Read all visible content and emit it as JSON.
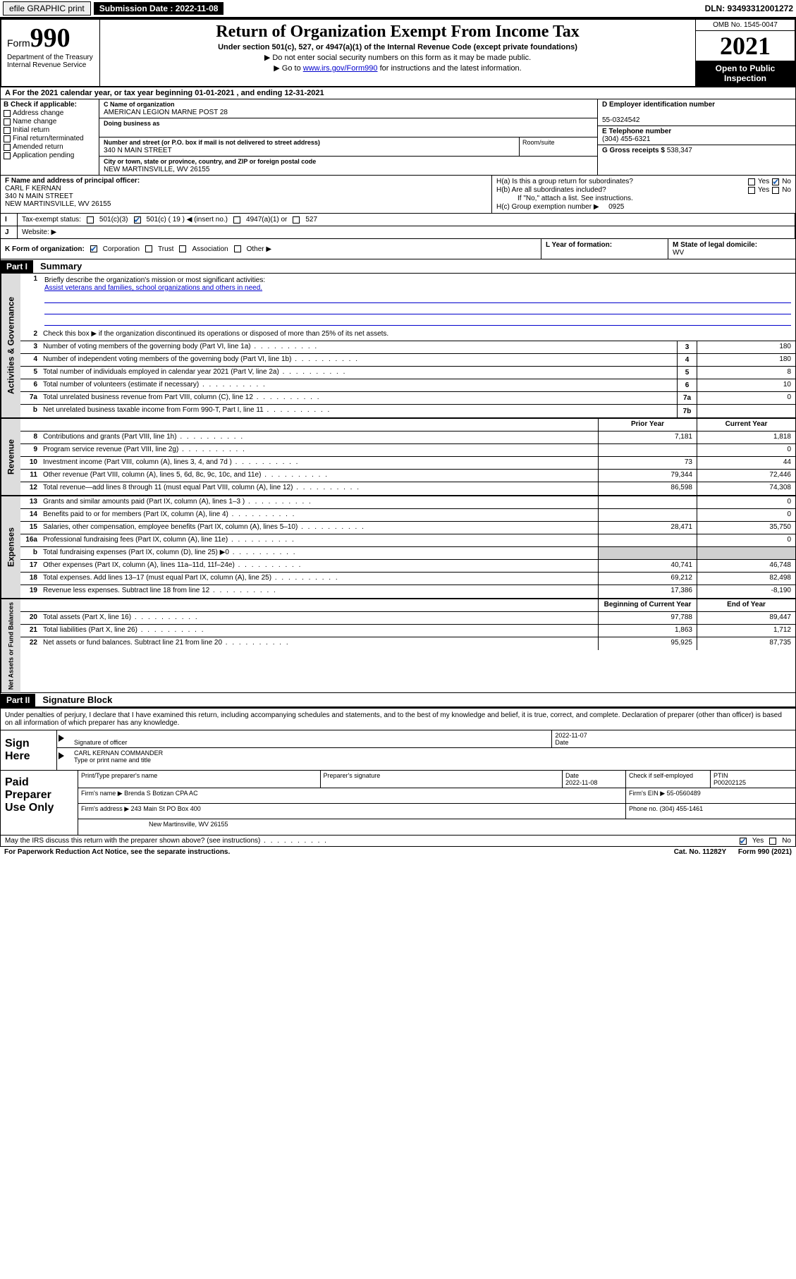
{
  "meta": {
    "efile_label": "efile GRAPHIC print",
    "submission_label": "Submission Date : 2022-11-08",
    "dln": "DLN: 93493312001272",
    "omb": "OMB No. 1545-0047",
    "form_label": "Form",
    "form_num": "990",
    "title": "Return of Organization Exempt From Income Tax",
    "subtitle": "Under section 501(c), 527, or 4947(a)(1) of the Internal Revenue Code (except private foundations)",
    "note1": "▶ Do not enter social security numbers on this form as it may be made public.",
    "note2_pre": "▶ Go to ",
    "note2_link": "www.irs.gov/Form990",
    "note2_post": " for instructions and the latest information.",
    "year": "2021",
    "open_public": "Open to Public Inspection",
    "dept": "Department of the Treasury Internal Revenue Service"
  },
  "row_a": "For the 2021 calendar year, or tax year beginning 01-01-2021    , and ending 12-31-2021",
  "col_b": {
    "header": "B Check if applicable:",
    "items": [
      "Address change",
      "Name change",
      "Initial return",
      "Final return/terminated",
      "Amended return",
      "Application pending"
    ]
  },
  "col_c": {
    "name_label": "C Name of organization",
    "name": "AMERICAN LEGION MARNE POST 28",
    "dba_label": "Doing business as",
    "street_label": "Number and street (or P.O. box if mail is not delivered to street address)",
    "street": "340 N MAIN STREET",
    "suite_label": "Room/suite",
    "city_label": "City or town, state or province, country, and ZIP or foreign postal code",
    "city": "NEW MARTINSVILLE, WV  26155"
  },
  "col_de": {
    "d_label": "D Employer identification number",
    "d_val": "55-0324542",
    "e_label": "E Telephone number",
    "e_val": "(304) 455-6321",
    "g_label": "G Gross receipts $",
    "g_val": "538,347"
  },
  "row_f": {
    "label": "F Name and address of principal officer:",
    "name": "CARL F KERNAN",
    "street": "340 N MAIN STREET",
    "city": "NEW MARTINSVILLE, WV  26155"
  },
  "row_h": {
    "ha": "H(a)  Is this a group return for subordinates?",
    "hb": "H(b)  Are all subordinates included?",
    "hb_note": "If \"No,\" attach a list. See instructions.",
    "hc": "H(c)  Group exemption number ▶",
    "hc_val": "0925",
    "yes": "Yes",
    "no": "No"
  },
  "row_i": {
    "label": "Tax-exempt status:",
    "opt1": "501(c)(3)",
    "opt2": "501(c) ( 19 ) ◀ (insert no.)",
    "opt3": "4947(a)(1) or",
    "opt4": "527"
  },
  "row_j": {
    "label": "Website: ▶"
  },
  "row_k": {
    "label": "K Form of organization:",
    "opts": [
      "Corporation",
      "Trust",
      "Association",
      "Other ▶"
    ]
  },
  "row_l": {
    "label": "L Year of formation:"
  },
  "row_m": {
    "label": "M State of legal domicile:",
    "val": "WV"
  },
  "part1": {
    "hdr": "Part I",
    "title": "Summary"
  },
  "summary": {
    "l1": "Briefly describe the organization's mission or most significant activities:",
    "l1_val": "Assist veterans and families, school organizations and others in need.",
    "l2": "Check this box ▶      if the organization discontinued its operations or disposed of more than 25% of its net assets.",
    "l3": "Number of voting members of the governing body (Part VI, line 1a)",
    "l3_val": "180",
    "l4": "Number of independent voting members of the governing body (Part VI, line 1b)",
    "l4_val": "180",
    "l5": "Total number of individuals employed in calendar year 2021 (Part V, line 2a)",
    "l5_val": "8",
    "l6": "Total number of volunteers (estimate if necessary)",
    "l6_val": "10",
    "l7a": "Total unrelated business revenue from Part VIII, column (C), line 12",
    "l7a_val": "0",
    "l7b": "Net unrelated business taxable income from Form 990-T, Part I, line 11",
    "l7b_val": "",
    "prior_hdr": "Prior Year",
    "current_hdr": "Current Year"
  },
  "revenue": [
    {
      "n": "8",
      "t": "Contributions and grants (Part VIII, line 1h)",
      "p": "7,181",
      "c": "1,818"
    },
    {
      "n": "9",
      "t": "Program service revenue (Part VIII, line 2g)",
      "p": "",
      "c": "0"
    },
    {
      "n": "10",
      "t": "Investment income (Part VIII, column (A), lines 3, 4, and 7d )",
      "p": "73",
      "c": "44"
    },
    {
      "n": "11",
      "t": "Other revenue (Part VIII, column (A), lines 5, 6d, 8c, 9c, 10c, and 11e)",
      "p": "79,344",
      "c": "72,446"
    },
    {
      "n": "12",
      "t": "Total revenue—add lines 8 through 11 (must equal Part VIII, column (A), line 12)",
      "p": "86,598",
      "c": "74,308"
    }
  ],
  "expenses": [
    {
      "n": "13",
      "t": "Grants and similar amounts paid (Part IX, column (A), lines 1–3 )",
      "p": "",
      "c": "0"
    },
    {
      "n": "14",
      "t": "Benefits paid to or for members (Part IX, column (A), line 4)",
      "p": "",
      "c": "0"
    },
    {
      "n": "15",
      "t": "Salaries, other compensation, employee benefits (Part IX, column (A), lines 5–10)",
      "p": "28,471",
      "c": "35,750"
    },
    {
      "n": "16a",
      "t": "Professional fundraising fees (Part IX, column (A), line 11e)",
      "p": "",
      "c": "0"
    },
    {
      "n": "b",
      "t": "Total fundraising expenses (Part IX, column (D), line 25) ▶0",
      "p": "SHADE",
      "c": "SHADE"
    },
    {
      "n": "17",
      "t": "Other expenses (Part IX, column (A), lines 11a–11d, 11f–24e)",
      "p": "40,741",
      "c": "46,748"
    },
    {
      "n": "18",
      "t": "Total expenses. Add lines 13–17 (must equal Part IX, column (A), line 25)",
      "p": "69,212",
      "c": "82,498"
    },
    {
      "n": "19",
      "t": "Revenue less expenses. Subtract line 18 from line 12",
      "p": "17,386",
      "c": "-8,190"
    }
  ],
  "netassets_hdr": {
    "p": "Beginning of Current Year",
    "c": "End of Year"
  },
  "netassets": [
    {
      "n": "20",
      "t": "Total assets (Part X, line 16)",
      "p": "97,788",
      "c": "89,447"
    },
    {
      "n": "21",
      "t": "Total liabilities (Part X, line 26)",
      "p": "1,863",
      "c": "1,712"
    },
    {
      "n": "22",
      "t": "Net assets or fund balances. Subtract line 21 from line 20",
      "p": "95,925",
      "c": "87,735"
    }
  ],
  "part2": {
    "hdr": "Part II",
    "title": "Signature Block"
  },
  "sig": {
    "perjury": "Under penalties of perjury, I declare that I have examined this return, including accompanying schedules and statements, and to the best of my knowledge and belief, it is true, correct, and complete. Declaration of preparer (other than officer) is based on all information of which preparer has any knowledge.",
    "sign_here": "Sign Here",
    "sig_officer": "Signature of officer",
    "date_label": "Date",
    "date_val": "2022-11-07",
    "name_title": "CARL KERNAN  COMMANDER",
    "type_name": "Type or print name and title"
  },
  "paid": {
    "label": "Paid Preparer Use Only",
    "print_name": "Print/Type preparer's name",
    "prep_sig": "Preparer's signature",
    "date_label": "Date",
    "date_val": "2022-11-08",
    "check_if": "Check        if self-employed",
    "ptin_label": "PTIN",
    "ptin_val": "P00202125",
    "firm_name_label": "Firm's name     ▶",
    "firm_name": "Brenda S Botizan CPA AC",
    "firm_ein_label": "Firm's EIN ▶",
    "firm_ein": "55-0560489",
    "firm_addr_label": "Firm's address ▶",
    "firm_addr1": "243 Main St PO Box 400",
    "firm_addr2": "New Martinsville, WV  26155",
    "phone_label": "Phone no.",
    "phone": "(304) 455-1461"
  },
  "footer": {
    "discuss": "May the IRS discuss this return with the preparer shown above? (see instructions)",
    "yes": "Yes",
    "no": "No",
    "paperwork": "For Paperwork Reduction Act Notice, see the separate instructions.",
    "cat": "Cat. No. 11282Y",
    "form": "Form 990 (2021)"
  },
  "vtabs": {
    "gov": "Activities & Governance",
    "rev": "Revenue",
    "exp": "Expenses",
    "net": "Net Assets or Fund Balances"
  }
}
